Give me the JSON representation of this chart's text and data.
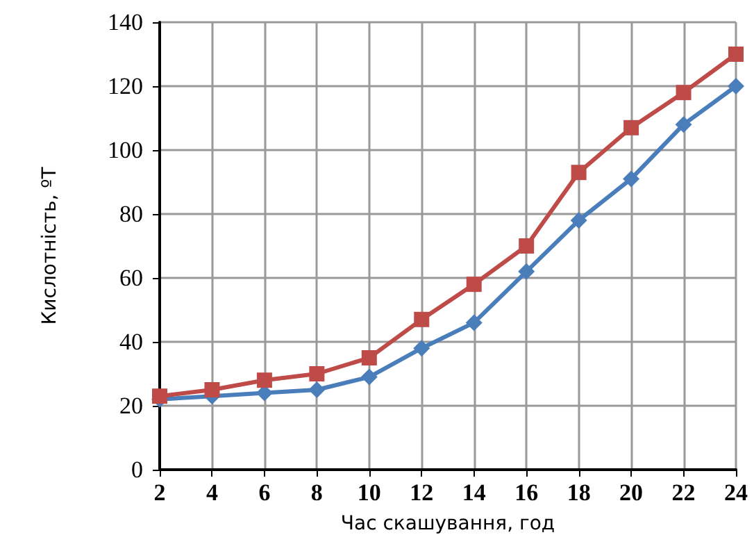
{
  "chart_data": {
    "type": "line",
    "xlabel": "Час скашування, год",
    "ylabel": "Кислотність, ºТ",
    "x": [
      2,
      4,
      6,
      8,
      10,
      12,
      14,
      16,
      18,
      20,
      22,
      24
    ],
    "xlim": [
      2,
      24
    ],
    "xticks": [
      2,
      4,
      6,
      8,
      10,
      12,
      14,
      16,
      18,
      20,
      22,
      24
    ],
    "ylim": [
      0,
      140
    ],
    "yticks": [
      0,
      20,
      40,
      60,
      80,
      100,
      120,
      140
    ],
    "grid": true,
    "line_style": "solid",
    "series": [
      {
        "color": "#4a7ebb",
        "marker": "diamond",
        "values": [
          22,
          23,
          24,
          25,
          29,
          38,
          46,
          62,
          78,
          91,
          108,
          120
        ]
      },
      {
        "color": "#be4b48",
        "marker": "square",
        "values": [
          23,
          25,
          28,
          30,
          35,
          47,
          58,
          70,
          93,
          107,
          118,
          130
        ]
      }
    ]
  }
}
